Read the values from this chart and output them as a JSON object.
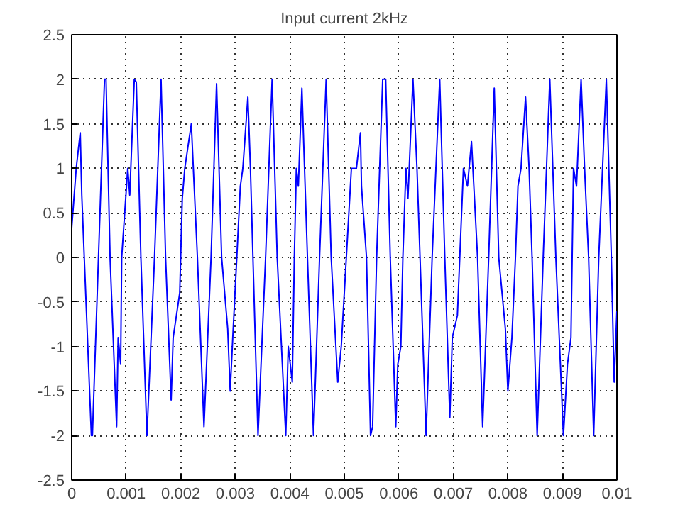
{
  "chart_data": {
    "type": "line",
    "title": "Input current 2kHz",
    "xlim": [
      0,
      0.01
    ],
    "xticks": [
      0,
      0.001,
      0.002,
      0.003,
      0.004,
      0.005,
      0.006,
      0.007,
      0.008,
      0.009,
      0.01
    ],
    "ylim": [
      -2.5,
      2.5
    ],
    "yticks": [
      -2.5,
      -2,
      -1.5,
      -1,
      -0.5,
      0,
      0.5,
      1,
      1.5,
      2,
      2.5
    ],
    "grid": true,
    "line_style": "solid",
    "marker": "none",
    "series": [
      {
        "color": "#0000ff",
        "x": [
          0,
          8.3e-05,
          0.000157,
          0.000185,
          0.000361,
          0.00038,
          0.000602,
          0.00063,
          0.000704,
          0.000824,
          0.000852,
          0.000898,
          0.000917,
          0.001028,
          0.001065,
          0.001148,
          0.001185,
          0.001269,
          0.00138,
          0.001519,
          0.001639,
          0.001722,
          0.001824,
          0.001861,
          0.001981,
          0.002028,
          0.002074,
          0.002194,
          0.002231,
          0.002306,
          0.002426,
          0.002556,
          0.002657,
          0.00275,
          0.002861,
          0.002907,
          0.002954,
          0.003028,
          0.003093,
          0.003139,
          0.003231,
          0.003278,
          0.003324,
          0.003417,
          0.003556,
          0.003676,
          0.003769,
          0.003926,
          0.003972,
          0.004046,
          0.004083,
          0.00412,
          0.004157,
          0.004222,
          0.004324,
          0.004435,
          0.004546,
          0.004667,
          0.004759,
          0.00488,
          0.004944,
          0.00513,
          0.005222,
          0.005296,
          0.005315,
          0.005407,
          0.005481,
          0.005519,
          0.005593,
          0.005704,
          0.005759,
          0.005843,
          0.005944,
          0.005981,
          0.006037,
          0.006074,
          0.00613,
          0.006167,
          0.006259,
          0.006333,
          0.006389,
          0.0065,
          0.006611,
          0.00675,
          0.006843,
          0.006935,
          0.006981,
          0.007074,
          0.007148,
          0.007185,
          0.007259,
          0.007333,
          0.007444,
          0.007537,
          0.007648,
          0.00775,
          0.007833,
          0.007954,
          0.008,
          0.008074,
          0.008139,
          0.008185,
          0.008241,
          0.008324,
          0.008389,
          0.008444,
          0.008537,
          0.008648,
          0.008769,
          0.00888,
          0.009019,
          0.009093,
          0.009157,
          0.009204,
          0.009259,
          0.009343,
          0.009407,
          0.009481,
          0.009574,
          0.009667,
          0.009806,
          0.009898,
          0.00995,
          0.01
        ],
        "values": [
          0.33,
          1.0,
          1.4,
          0.7,
          -2,
          -2,
          2,
          2,
          0,
          -1.9,
          -0.9,
          -1.2,
          0,
          1.0,
          0.7,
          2,
          1.97,
          0,
          -2,
          0,
          2,
          0,
          -1.6,
          -0.9,
          -0.4,
          0.66,
          1.0,
          1.5,
          1.0,
          0,
          -1.9,
          0,
          1.95,
          0,
          -0.8,
          -1.5,
          -0.9,
          0,
          0.8,
          1.0,
          1.8,
          1.0,
          0,
          -2,
          0,
          2,
          0,
          -2,
          -1.0,
          -1.4,
          0,
          1.0,
          0.8,
          1.9,
          0,
          -2,
          0,
          2,
          0,
          -1.4,
          -1.0,
          1.0,
          1.0,
          1.4,
          0.8,
          0,
          -2,
          -1.9,
          0,
          2,
          2,
          0,
          -1.9,
          -1.2,
          -1.0,
          0,
          1.0,
          0.66,
          2,
          1.0,
          0,
          -2,
          0,
          2,
          0,
          -1.8,
          -0.9,
          -0.65,
          0.45,
          1.0,
          0.8,
          1.3,
          0,
          -1.9,
          0,
          1.9,
          0,
          -0.8,
          -1.5,
          -0.9,
          0,
          0.8,
          1.0,
          1.8,
          1.0,
          0,
          -2,
          0,
          2,
          0,
          -2,
          -1.2,
          -0.9,
          1.0,
          0.8,
          2,
          1.0,
          0,
          -2,
          0,
          2,
          0,
          -1.4,
          -0.6
        ]
      }
    ]
  }
}
